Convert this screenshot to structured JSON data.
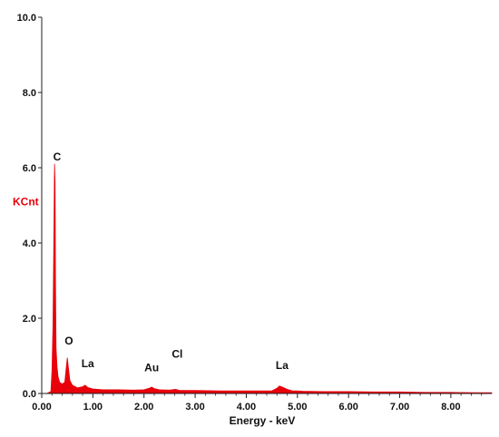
{
  "chart_data": {
    "type": "area",
    "title": "",
    "xlabel": "Energy - keV",
    "ylabel": "KCnt",
    "xlim": [
      0,
      8.8
    ],
    "ylim": [
      0,
      10
    ],
    "x_ticks": [
      0,
      1,
      2,
      3,
      4,
      5,
      6,
      7,
      8
    ],
    "x_tick_labels": [
      "0.00",
      "1.00",
      "2.00",
      "3.00",
      "4.00",
      "5.00",
      "6.00",
      "7.00",
      "8.00"
    ],
    "y_ticks": [
      0,
      2,
      4,
      6,
      8,
      10
    ],
    "y_tick_labels": [
      "0.0",
      "2.0",
      "4.0",
      "6.0",
      "8.0",
      "10.0"
    ],
    "grid": false,
    "legend": "none",
    "colors": {
      "spectrum": "#e8000b",
      "ylabel": "#e8000b",
      "axis": "#222222"
    },
    "series": [
      {
        "values_x": [
          0.0,
          0.1,
          0.18,
          0.2,
          0.22,
          0.24,
          0.25,
          0.26,
          0.27,
          0.28,
          0.3,
          0.32,
          0.35,
          0.4,
          0.45,
          0.48,
          0.5,
          0.52,
          0.55,
          0.6,
          0.7,
          0.8,
          0.85,
          0.9,
          1.0,
          1.2,
          1.5,
          1.8,
          2.0,
          2.1,
          2.15,
          2.2,
          2.3,
          2.5,
          2.62,
          2.7,
          3.0,
          3.5,
          4.0,
          4.5,
          4.6,
          4.65,
          4.7,
          4.8,
          4.9,
          5.0,
          5.1,
          5.5,
          6.0,
          6.5,
          7.0,
          7.5,
          8.0,
          8.5,
          8.8
        ],
        "values_y": [
          0.0,
          0.0,
          0.05,
          0.6,
          1.8,
          4.5,
          6.1,
          5.6,
          2.9,
          1.2,
          0.7,
          0.45,
          0.3,
          0.25,
          0.3,
          0.7,
          0.95,
          0.7,
          0.35,
          0.22,
          0.15,
          0.18,
          0.22,
          0.16,
          0.12,
          0.1,
          0.1,
          0.09,
          0.1,
          0.14,
          0.17,
          0.13,
          0.1,
          0.09,
          0.11,
          0.08,
          0.08,
          0.07,
          0.07,
          0.07,
          0.14,
          0.2,
          0.17,
          0.11,
          0.07,
          0.07,
          0.06,
          0.05,
          0.05,
          0.04,
          0.04,
          0.03,
          0.03,
          0.02,
          0.02
        ]
      }
    ],
    "annotations": [
      {
        "text": "C",
        "x": 0.3,
        "y": 6.1
      },
      {
        "text": "O",
        "x": 0.53,
        "y": 1.2
      },
      {
        "text": "La",
        "x": 0.9,
        "y": 0.6
      },
      {
        "text": "Au",
        "x": 2.15,
        "y": 0.5
      },
      {
        "text": "Cl",
        "x": 2.65,
        "y": 0.85
      },
      {
        "text": "La",
        "x": 4.7,
        "y": 0.55
      }
    ]
  }
}
